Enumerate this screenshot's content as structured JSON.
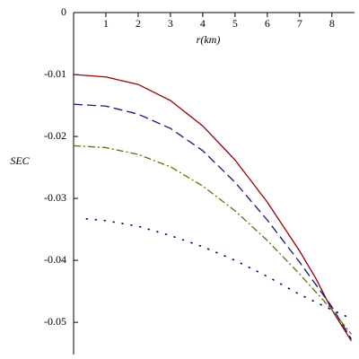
{
  "chart_data": {
    "type": "line",
    "x_label": "r(km)",
    "y_label": "SEC",
    "xlim": [
      0,
      8.7
    ],
    "ylim": [
      -0.0552,
      0
    ],
    "xticks": [
      1,
      2,
      3,
      4,
      5,
      6,
      7,
      8
    ],
    "yticks": [
      0,
      -0.01,
      -0.02,
      -0.03,
      -0.04,
      -0.05
    ],
    "series": [
      {
        "color": "#990000",
        "dash": "solid",
        "x": [
          0,
          1,
          2,
          3,
          4,
          5,
          6,
          7,
          7.5,
          8,
          8.6
        ],
        "values": [
          -0.01,
          -0.0104,
          -0.0116,
          -0.0142,
          -0.0183,
          -0.0238,
          -0.0306,
          -0.0385,
          -0.0429,
          -0.048,
          -0.053
        ]
      },
      {
        "color": "#0a1a80",
        "dash": "dash",
        "x": [
          0,
          1,
          2,
          3,
          4,
          5,
          6,
          7,
          8,
          8.6
        ],
        "values": [
          -0.0148,
          -0.0151,
          -0.0164,
          -0.0187,
          -0.0223,
          -0.0274,
          -0.0335,
          -0.0403,
          -0.0475,
          -0.0527
        ]
      },
      {
        "color": "#557700",
        "dash": "dashdot",
        "x": [
          0,
          1,
          2,
          3,
          4,
          5,
          6,
          7,
          8,
          8.6
        ],
        "values": [
          -0.0215,
          -0.0218,
          -0.0229,
          -0.0249,
          -0.028,
          -0.032,
          -0.0368,
          -0.0422,
          -0.048,
          -0.0519
        ]
      },
      {
        "color": "#000080",
        "dash": "dot",
        "x": [
          0.4,
          1,
          2,
          3,
          4,
          5,
          6,
          7,
          8,
          8.6
        ],
        "values": [
          -0.0333,
          -0.0336,
          -0.0345,
          -0.036,
          -0.0378,
          -0.04,
          -0.0426,
          -0.0455,
          -0.048,
          -0.0494
        ]
      }
    ]
  }
}
